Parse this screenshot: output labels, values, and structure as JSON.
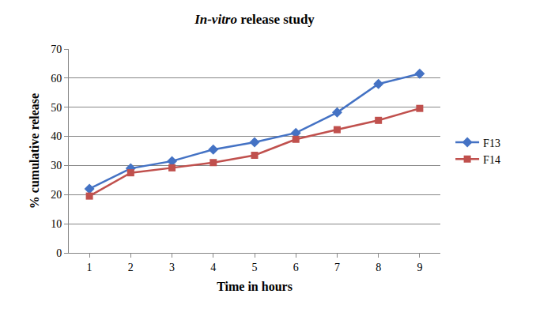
{
  "chart_data": {
    "type": "line",
    "title": "In-vitro release study",
    "x_label": "Time in hours",
    "y_label": "% cumulative release",
    "x": [
      1,
      2,
      3,
      4,
      5,
      6,
      7,
      8,
      9
    ],
    "series": [
      {
        "name": "F13",
        "color": "#4472c4",
        "marker": "diamond",
        "values": [
          22,
          29,
          31.5,
          35.5,
          38,
          41.2,
          48.2,
          58,
          61.5
        ]
      },
      {
        "name": "F14",
        "color": "#c0504d",
        "marker": "square",
        "values": [
          19.5,
          27.5,
          29.2,
          31,
          33.5,
          39,
          42.3,
          45.5,
          49.6
        ]
      }
    ],
    "xlim": [
      0.5,
      9.5
    ],
    "xticks": [
      1,
      2,
      3,
      4,
      5,
      6,
      7,
      8,
      9
    ],
    "ylim": [
      0,
      70
    ],
    "yticks": [
      0,
      10,
      20,
      30,
      40,
      50,
      60,
      70
    ],
    "grid": true,
    "legend": "right"
  }
}
